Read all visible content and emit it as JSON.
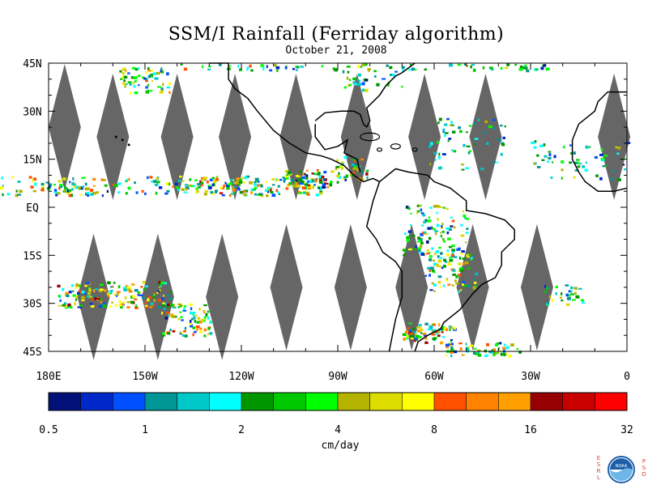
{
  "title": "SSM/I Rainfall (Ferriday algorithm)",
  "subtitle": "October 21, 2008",
  "map": {
    "lat_labels": [
      "45N",
      "30N",
      "15N",
      "EQ",
      "15S",
      "30S",
      "45S"
    ],
    "lat_values": [
      45,
      30,
      15,
      0,
      -15,
      -30,
      -45
    ],
    "lon_labels": [
      "180E",
      "150W",
      "120W",
      "90W",
      "60W",
      "30W",
      "0"
    ],
    "lon_values": [
      -180,
      -150,
      -120,
      -90,
      -60,
      -30,
      0
    ],
    "lon_range": [
      -180,
      0
    ],
    "lat_range": [
      -45,
      45
    ],
    "no_data_color": "#666666",
    "coastline_color": "#000000"
  },
  "colorbar": {
    "unit_label": "cm/day",
    "tick_labels": [
      "0.5",
      "1",
      "2",
      "4",
      "8",
      "16",
      "32"
    ],
    "colors": [
      "#00127a",
      "#0028c8",
      "#0050ff",
      "#009696",
      "#00c8c8",
      "#00ffff",
      "#009600",
      "#00c800",
      "#00ff00",
      "#b4b400",
      "#dcdc00",
      "#ffff00",
      "#ff5000",
      "#ff8200",
      "#ffa000",
      "#960000",
      "#c80000",
      "#ff0000"
    ]
  },
  "logo": {
    "left_letters": "ESRL",
    "right_letters": "PSD",
    "center_text": "NOAA",
    "name": "NOAA ESRL PSD logo"
  }
}
